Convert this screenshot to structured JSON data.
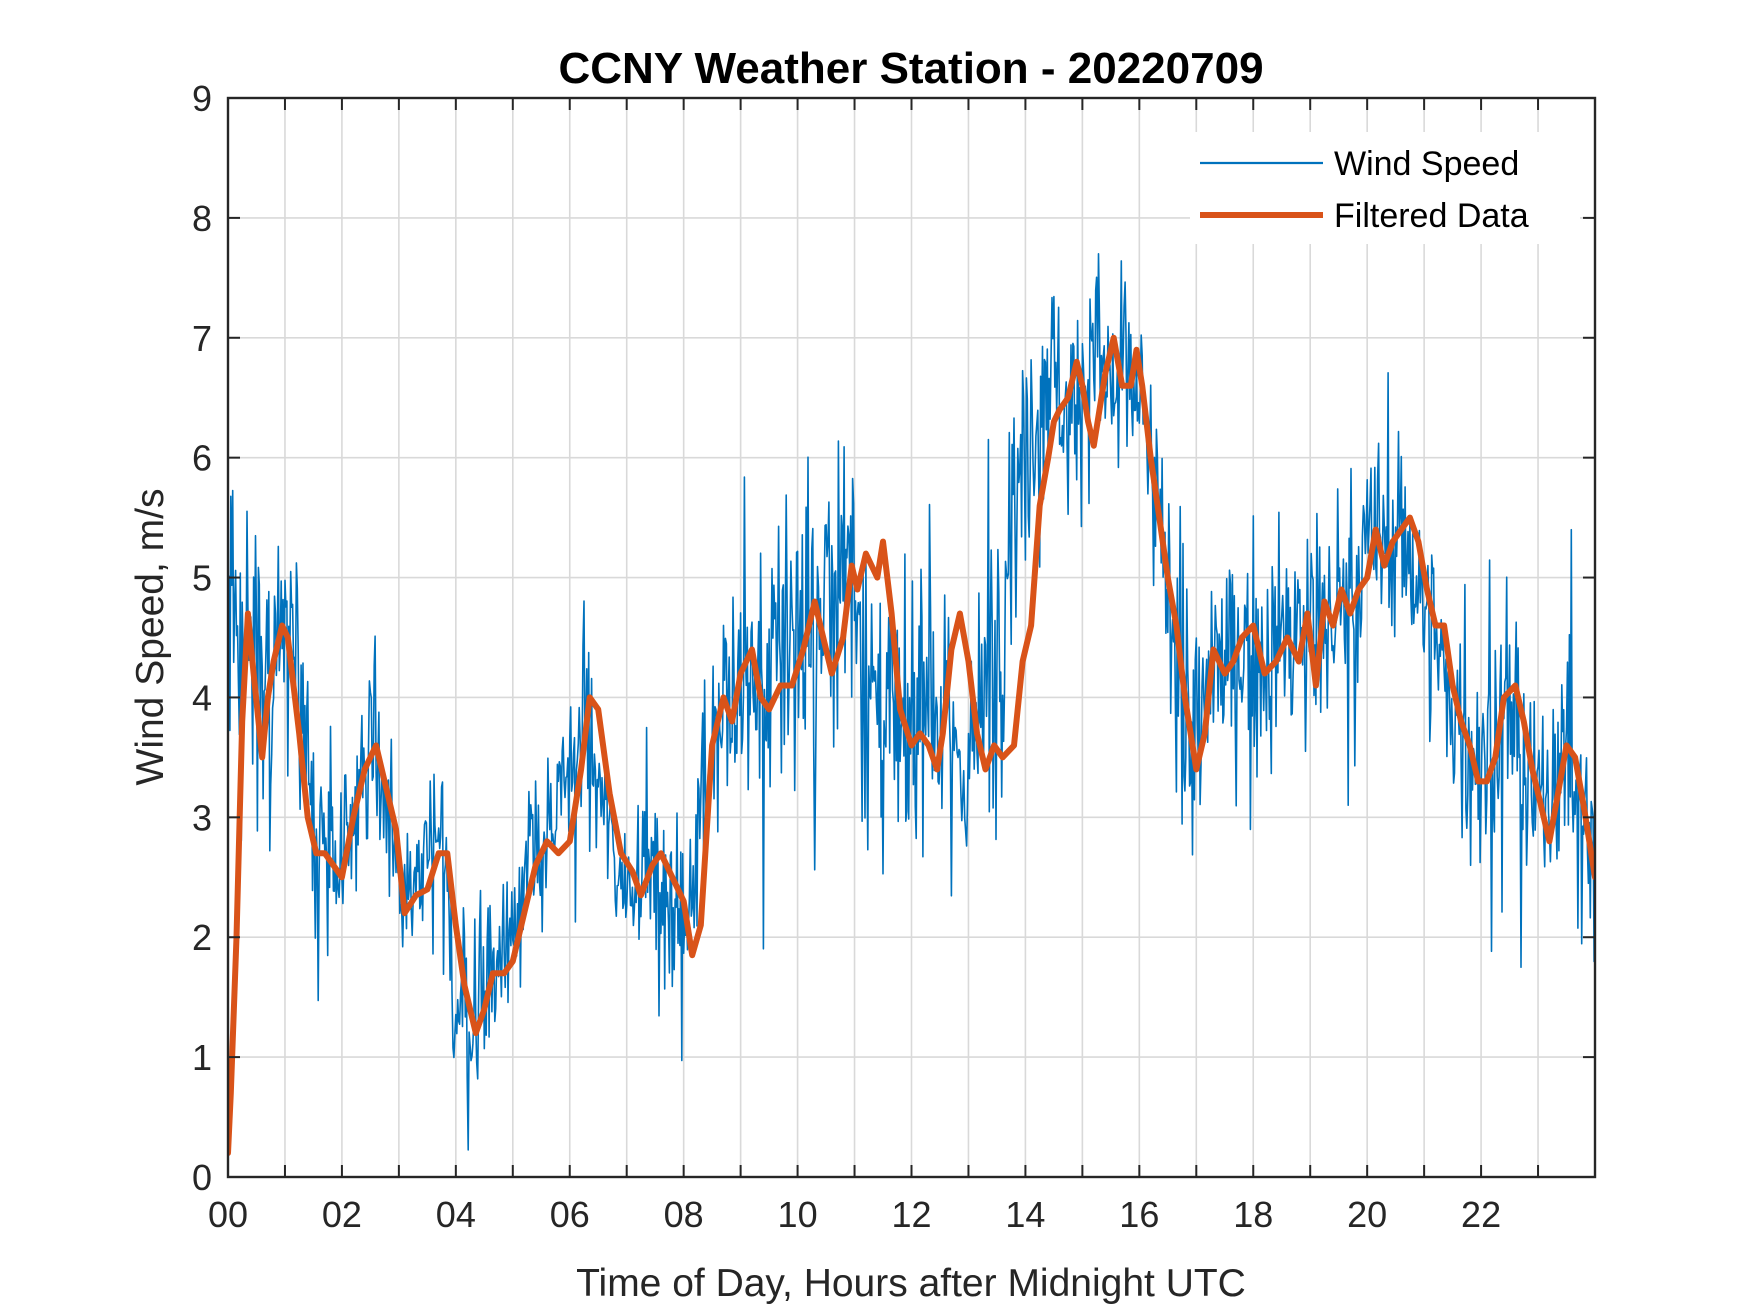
{
  "chart_data": {
    "type": "line",
    "title": "CCNY Weather Station - 20220709",
    "xlabel": "Time of Day, Hours after Midnight UTC",
    "ylabel": "Wind Speed, m/s",
    "xlim": [
      0,
      24
    ],
    "ylim": [
      0,
      9
    ],
    "grid": true,
    "legend_position": "top-right",
    "x_tick_values": [
      0,
      2,
      4,
      6,
      8,
      10,
      12,
      14,
      16,
      18,
      20,
      22
    ],
    "x_tick_labels": [
      "00",
      "02",
      "04",
      "06",
      "08",
      "10",
      "12",
      "14",
      "16",
      "18",
      "20",
      "22"
    ],
    "y_tick_values": [
      0,
      1,
      2,
      3,
      4,
      5,
      6,
      7,
      8,
      9
    ],
    "y_tick_labels": [
      "0",
      "1",
      "2",
      "3",
      "4",
      "5",
      "6",
      "7",
      "8",
      "9"
    ],
    "series": [
      {
        "name": "Wind Speed",
        "color": "#0072BD",
        "style": "thin noisy raw samples, approx. one per minute; envelope described by x/values (mean) and spread (typical deviation)",
        "x": [
          0,
          0.25,
          0.5,
          0.75,
          1,
          1.25,
          1.5,
          1.75,
          2,
          2.25,
          2.5,
          2.75,
          3,
          3.25,
          3.5,
          3.75,
          4,
          4.25,
          4.5,
          4.75,
          5,
          5.25,
          5.5,
          5.75,
          6,
          6.25,
          6.5,
          6.75,
          7,
          7.25,
          7.5,
          7.75,
          8,
          8.25,
          8.5,
          8.75,
          9,
          9.25,
          9.5,
          9.75,
          10,
          10.25,
          10.5,
          10.75,
          11,
          11.25,
          11.5,
          11.75,
          12,
          12.25,
          12.5,
          12.75,
          13,
          13.25,
          13.5,
          13.75,
          14,
          14.25,
          14.5,
          14.75,
          15,
          15.25,
          15.5,
          15.75,
          16,
          16.25,
          16.5,
          16.75,
          17,
          17.25,
          17.5,
          17.75,
          18,
          18.25,
          18.5,
          18.75,
          19,
          19.25,
          19.5,
          19.75,
          20,
          20.25,
          20.5,
          20.75,
          21,
          21.25,
          21.5,
          21.75,
          22,
          22.25,
          22.5,
          22.75,
          23,
          23.25,
          23.5,
          23.75,
          24
        ],
        "values": [
          5.0,
          4.6,
          4.2,
          3.8,
          4.6,
          4.1,
          2.9,
          2.7,
          2.6,
          3.3,
          3.6,
          3.2,
          2.3,
          2.4,
          2.6,
          2.6,
          1.6,
          1.3,
          1.6,
          1.8,
          2.2,
          2.6,
          2.7,
          2.9,
          3.4,
          3.9,
          3.2,
          2.8,
          2.4,
          2.7,
          2.5,
          2.2,
          2.0,
          3.0,
          3.8,
          3.9,
          4.0,
          4.0,
          4.1,
          4.4,
          4.6,
          4.3,
          4.9,
          5.1,
          5.2,
          4.0,
          3.8,
          3.6,
          3.5,
          4.5,
          3.8,
          3.5,
          3.5,
          3.8,
          4.5,
          5.6,
          6.2,
          6.6,
          6.8,
          6.3,
          6.6,
          6.9,
          6.6,
          6.8,
          6.5,
          5.6,
          5.0,
          4.1,
          3.5,
          4.2,
          4.3,
          4.4,
          4.4,
          4.3,
          4.5,
          4.4,
          4.7,
          4.6,
          4.8,
          4.8,
          5.2,
          5.3,
          5.4,
          5.2,
          4.8,
          4.3,
          3.9,
          3.6,
          3.4,
          3.7,
          4.0,
          3.4,
          3.0,
          3.5,
          3.5,
          3.1,
          2.6
        ],
        "spread": [
          0.9,
          0.9,
          0.8,
          0.8,
          0.7,
          0.6,
          0.5,
          0.5,
          0.4,
          0.5,
          0.5,
          0.5,
          0.5,
          0.5,
          0.5,
          0.5,
          0.6,
          0.6,
          0.5,
          0.5,
          0.5,
          0.5,
          0.4,
          0.4,
          0.5,
          0.5,
          0.5,
          0.4,
          0.4,
          0.4,
          0.4,
          0.4,
          0.5,
          0.8,
          0.8,
          0.8,
          0.8,
          0.8,
          0.8,
          0.9,
          0.9,
          0.9,
          1.0,
          1.0,
          1.1,
          0.9,
          0.8,
          0.9,
          0.8,
          0.9,
          0.8,
          0.8,
          0.7,
          0.8,
          0.9,
          0.9,
          0.8,
          0.7,
          0.6,
          0.6,
          0.6,
          0.6,
          0.5,
          0.5,
          0.6,
          0.7,
          0.8,
          0.8,
          0.7,
          0.6,
          0.6,
          0.6,
          0.6,
          0.6,
          0.7,
          0.7,
          0.7,
          0.7,
          0.7,
          0.6,
          0.6,
          0.6,
          0.6,
          0.6,
          0.6,
          0.6,
          0.6,
          0.6,
          0.7,
          0.7,
          0.7,
          0.6,
          0.6,
          0.6,
          0.6,
          0.7,
          0.7
        ]
      },
      {
        "name": "Filtered Data",
        "color": "#D95319",
        "style": "thick smoothed line",
        "x": [
          0,
          0.05,
          0.15,
          0.25,
          0.35,
          0.45,
          0.6,
          0.7,
          0.8,
          0.95,
          1.05,
          1.25,
          1.4,
          1.55,
          1.7,
          1.85,
          2.0,
          2.2,
          2.4,
          2.6,
          2.75,
          2.95,
          3.1,
          3.3,
          3.5,
          3.7,
          3.85,
          4.0,
          4.15,
          4.35,
          4.5,
          4.65,
          4.85,
          5.0,
          5.2,
          5.4,
          5.6,
          5.8,
          6.0,
          6.2,
          6.35,
          6.5,
          6.7,
          6.9,
          7.1,
          7.25,
          7.45,
          7.6,
          7.8,
          8.0,
          8.15,
          8.3,
          8.5,
          8.7,
          8.85,
          9.0,
          9.2,
          9.35,
          9.5,
          9.7,
          9.9,
          10.1,
          10.3,
          10.45,
          10.6,
          10.8,
          10.95,
          11.05,
          11.2,
          11.4,
          11.5,
          11.65,
          11.8,
          12.0,
          12.15,
          12.3,
          12.45,
          12.55,
          12.7,
          12.85,
          13.0,
          13.15,
          13.3,
          13.45,
          13.6,
          13.8,
          13.95,
          14.1,
          14.25,
          14.4,
          14.5,
          14.6,
          14.75,
          14.9,
          15.0,
          15.1,
          15.2,
          15.4,
          15.55,
          15.7,
          15.85,
          15.95,
          16.05,
          16.2,
          16.35,
          16.5,
          16.65,
          16.8,
          17.0,
          17.15,
          17.3,
          17.5,
          17.65,
          17.8,
          18.0,
          18.2,
          18.4,
          18.6,
          18.8,
          18.95,
          19.1,
          19.25,
          19.4,
          19.55,
          19.7,
          19.85,
          20.0,
          20.15,
          20.3,
          20.45,
          20.6,
          20.75,
          20.9,
          21.05,
          21.2,
          21.35,
          21.5,
          21.65,
          21.8,
          21.95,
          22.1,
          22.25,
          22.4,
          22.6,
          22.75,
          22.9,
          23.05,
          23.2,
          23.35,
          23.5,
          23.65,
          23.8,
          24.0
        ],
        "values": [
          0.2,
          0.7,
          2.0,
          3.8,
          4.7,
          4.2,
          3.5,
          4.0,
          4.3,
          4.6,
          4.5,
          3.7,
          3.0,
          2.7,
          2.7,
          2.6,
          2.5,
          3.0,
          3.4,
          3.6,
          3.3,
          2.9,
          2.2,
          2.35,
          2.4,
          2.7,
          2.7,
          2.1,
          1.6,
          1.2,
          1.4,
          1.7,
          1.7,
          1.8,
          2.2,
          2.6,
          2.8,
          2.7,
          2.8,
          3.4,
          4.0,
          3.9,
          3.2,
          2.7,
          2.55,
          2.35,
          2.6,
          2.7,
          2.5,
          2.3,
          1.85,
          2.1,
          3.6,
          4.0,
          3.8,
          4.2,
          4.4,
          4.0,
          3.9,
          4.1,
          4.1,
          4.4,
          4.8,
          4.5,
          4.2,
          4.5,
          5.1,
          4.9,
          5.2,
          5.0,
          5.3,
          4.7,
          3.9,
          3.6,
          3.7,
          3.6,
          3.4,
          3.7,
          4.4,
          4.7,
          4.3,
          3.7,
          3.4,
          3.6,
          3.5,
          3.6,
          4.3,
          4.6,
          5.6,
          6.0,
          6.3,
          6.4,
          6.5,
          6.8,
          6.6,
          6.3,
          6.1,
          6.7,
          7.0,
          6.6,
          6.6,
          6.9,
          6.6,
          6.0,
          5.5,
          5.0,
          4.6,
          4.0,
          3.4,
          3.7,
          4.4,
          4.2,
          4.3,
          4.5,
          4.6,
          4.2,
          4.3,
          4.5,
          4.3,
          4.7,
          4.1,
          4.8,
          4.6,
          4.9,
          4.7,
          4.9,
          5.0,
          5.4,
          5.1,
          5.3,
          5.4,
          5.5,
          5.3,
          4.9,
          4.6,
          4.6,
          4.1,
          3.8,
          3.6,
          3.3,
          3.3,
          3.5,
          4.0,
          4.1,
          3.8,
          3.4,
          3.1,
          2.8,
          3.2,
          3.6,
          3.5,
          3.1,
          2.5
        ]
      }
    ]
  }
}
